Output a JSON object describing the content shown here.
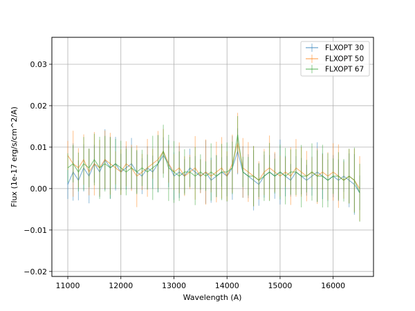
{
  "chart_data": {
    "type": "line",
    "title": "",
    "xlabel": "Wavelength (A)",
    "ylabel": "Flux (1e-17 erg/s/cm^2/A)",
    "xlim": [
      10700,
      16760
    ],
    "ylim": [
      -0.0212,
      0.0365
    ],
    "xticks": [
      11000,
      12000,
      13000,
      14000,
      15000,
      16000
    ],
    "yticks": [
      -0.02,
      -0.01,
      0.0,
      0.01,
      0.02,
      0.03
    ],
    "xtick_labels": [
      "11000",
      "12000",
      "13000",
      "14000",
      "15000",
      "16000"
    ],
    "ytick_labels": [
      "−0.02",
      "−0.01",
      "0.00",
      "0.01",
      "0.02",
      "0.03"
    ],
    "grid": true,
    "legend_position": "top-right",
    "error_bars": true,
    "series": [
      {
        "name": "FLXOPT 30",
        "color": "#1f77b4",
        "x": [
          11000,
          11100,
          11200,
          11300,
          11400,
          11500,
          11600,
          11700,
          11800,
          11900,
          12000,
          12100,
          12200,
          12300,
          12400,
          12500,
          12600,
          12700,
          12800,
          12900,
          13000,
          13100,
          13200,
          13300,
          13400,
          13500,
          13600,
          13700,
          13800,
          13900,
          14000,
          14100,
          14200,
          14300,
          14400,
          14500,
          14600,
          14700,
          14800,
          14900,
          15000,
          15100,
          15200,
          15300,
          15400,
          15500,
          15600,
          15700,
          15800,
          15900,
          16000,
          16100,
          16200,
          16300,
          16400,
          16500
        ],
        "y": [
          0.001,
          0.004,
          0.002,
          0.005,
          0.003,
          0.006,
          0.004,
          0.007,
          0.005,
          0.006,
          0.004,
          0.005,
          0.006,
          0.004,
          0.003,
          0.005,
          0.004,
          0.006,
          0.008,
          0.006,
          0.003,
          0.004,
          0.003,
          0.005,
          0.004,
          0.003,
          0.004,
          0.002,
          0.003,
          0.004,
          0.003,
          0.005,
          0.009,
          0.004,
          0.003,
          0.002,
          0.001,
          0.003,
          0.004,
          0.003,
          0.004,
          0.003,
          0.002,
          0.004,
          0.003,
          0.002,
          0.003,
          0.004,
          0.003,
          0.002,
          0.003,
          0.002,
          0.003,
          0.002,
          0.001,
          -0.001
        ]
      },
      {
        "name": "FLXOPT 50",
        "color": "#ff7f0e",
        "x": [
          11000,
          11100,
          11200,
          11300,
          11400,
          11500,
          11600,
          11700,
          11800,
          11900,
          12000,
          12100,
          12200,
          12300,
          12400,
          12500,
          12600,
          12700,
          12800,
          12900,
          13000,
          13100,
          13200,
          13300,
          13400,
          13500,
          13600,
          13700,
          13800,
          13900,
          14000,
          14100,
          14200,
          14300,
          14400,
          14500,
          14600,
          14700,
          14800,
          14900,
          15000,
          15100,
          15200,
          15300,
          15400,
          15500,
          15600,
          15700,
          15800,
          15900,
          16000,
          16100,
          16200,
          16300,
          16400,
          16500
        ],
        "y": [
          0.008,
          0.006,
          0.005,
          0.007,
          0.004,
          0.006,
          0.005,
          0.007,
          0.006,
          0.005,
          0.004,
          0.006,
          0.005,
          0.003,
          0.004,
          0.005,
          0.006,
          0.007,
          0.009,
          0.006,
          0.004,
          0.005,
          0.003,
          0.004,
          0.005,
          0.003,
          0.004,
          0.003,
          0.004,
          0.005,
          0.003,
          0.006,
          0.011,
          0.005,
          0.004,
          0.003,
          0.002,
          0.004,
          0.005,
          0.004,
          0.003,
          0.004,
          0.003,
          0.005,
          0.004,
          0.003,
          0.004,
          0.003,
          0.004,
          0.003,
          0.004,
          0.003,
          0.002,
          0.003,
          0.002,
          0.0
        ]
      },
      {
        "name": "FLXOPT 67",
        "color": "#2ca02c",
        "x": [
          11000,
          11100,
          11200,
          11300,
          11400,
          11500,
          11600,
          11700,
          11800,
          11900,
          12000,
          12100,
          12200,
          12300,
          12400,
          12500,
          12600,
          12700,
          12800,
          12900,
          13000,
          13100,
          13200,
          13300,
          13400,
          13500,
          13600,
          13700,
          13800,
          13900,
          14000,
          14100,
          14200,
          14300,
          14400,
          14500,
          14600,
          14700,
          14800,
          14900,
          15000,
          15100,
          15200,
          15300,
          15400,
          15500,
          15600,
          15700,
          15800,
          15900,
          16000,
          16100,
          16200,
          16300,
          16400,
          16500
        ],
        "y": [
          0.005,
          0.006,
          0.004,
          0.006,
          0.005,
          0.007,
          0.005,
          0.006,
          0.005,
          0.006,
          0.005,
          0.004,
          0.005,
          0.004,
          0.005,
          0.004,
          0.005,
          0.006,
          0.009,
          0.005,
          0.004,
          0.003,
          0.004,
          0.004,
          0.003,
          0.004,
          0.003,
          0.004,
          0.003,
          0.004,
          0.004,
          0.005,
          0.013,
          0.004,
          0.003,
          0.003,
          0.002,
          0.003,
          0.004,
          0.003,
          0.004,
          0.003,
          0.004,
          0.004,
          0.003,
          0.003,
          0.004,
          0.003,
          0.003,
          0.002,
          0.003,
          0.003,
          0.002,
          0.003,
          0.002,
          -0.001
        ]
      }
    ]
  }
}
